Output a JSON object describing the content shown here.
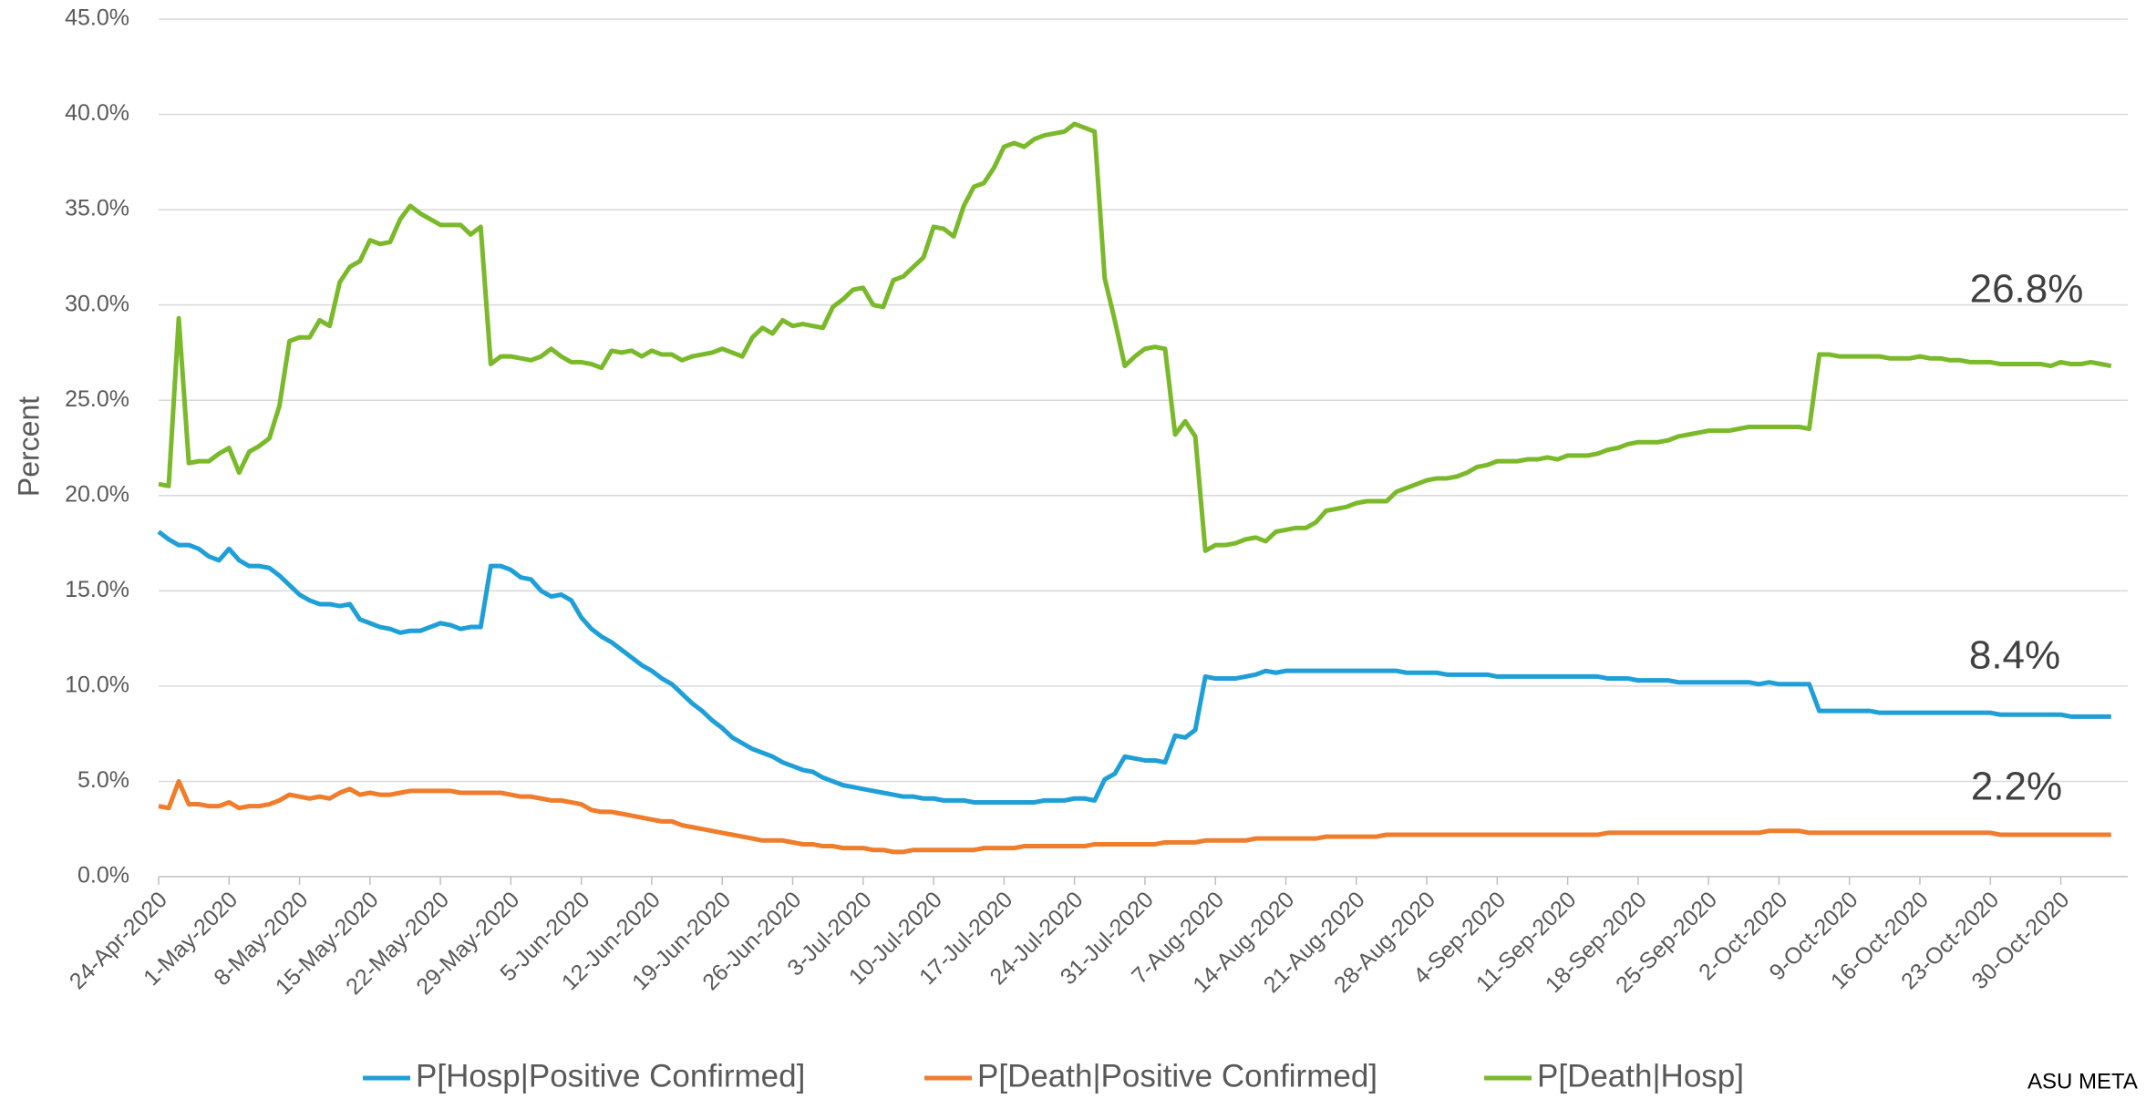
{
  "chart_data": {
    "type": "line",
    "y_label": "Percent",
    "ylim": [
      0,
      45
    ],
    "yticks": [
      {
        "value": 0,
        "label": "0.0%"
      },
      {
        "value": 5,
        "label": "5.0%"
      },
      {
        "value": 10,
        "label": "10.0%"
      },
      {
        "value": 15,
        "label": "15.0%"
      },
      {
        "value": 20,
        "label": "20.0%"
      },
      {
        "value": 25,
        "label": "25.0%"
      },
      {
        "value": 30,
        "label": "30.0%"
      },
      {
        "value": 35,
        "label": "35.0%"
      },
      {
        "value": 40,
        "label": "40.0%"
      },
      {
        "value": 45,
        "label": "45.0%"
      }
    ],
    "grid": true,
    "legend": "bottom",
    "categories": [
      "24-Apr-2020",
      null,
      null,
      null,
      null,
      null,
      null,
      "1-May-2020",
      null,
      null,
      null,
      null,
      null,
      null,
      "8-May-2020",
      null,
      null,
      null,
      null,
      null,
      null,
      "15-May-2020",
      null,
      null,
      null,
      null,
      null,
      null,
      "22-May-2020",
      null,
      null,
      null,
      null,
      null,
      null,
      "29-May-2020",
      null,
      null,
      null,
      null,
      null,
      null,
      "5-Jun-2020",
      null,
      null,
      null,
      null,
      null,
      null,
      "12-Jun-2020",
      null,
      null,
      null,
      null,
      null,
      null,
      "19-Jun-2020",
      null,
      null,
      null,
      null,
      null,
      null,
      "26-Jun-2020",
      null,
      null,
      null,
      null,
      null,
      null,
      "3-Jul-2020",
      null,
      null,
      null,
      null,
      null,
      null,
      "10-Jul-2020",
      null,
      null,
      null,
      null,
      null,
      null,
      "17-Jul-2020",
      null,
      null,
      null,
      null,
      null,
      null,
      "24-Jul-2020",
      null,
      null,
      null,
      null,
      null,
      null,
      "31-Jul-2020",
      null,
      null,
      null,
      null,
      null,
      null,
      "7-Aug-2020",
      null,
      null,
      null,
      null,
      null,
      null,
      "14-Aug-2020",
      null,
      null,
      null,
      null,
      null,
      null,
      "21-Aug-2020",
      null,
      null,
      null,
      null,
      null,
      null,
      "28-Aug-2020",
      null,
      null,
      null,
      null,
      null,
      null,
      "4-Sep-2020",
      null,
      null,
      null,
      null,
      null,
      null,
      "11-Sep-2020",
      null,
      null,
      null,
      null,
      null,
      null,
      "18-Sep-2020",
      null,
      null,
      null,
      null,
      null,
      null,
      "25-Sep-2020",
      null,
      null,
      null,
      null,
      null,
      null,
      "2-Oct-2020",
      null,
      null,
      null,
      null,
      null,
      null,
      "9-Oct-2020",
      null,
      null,
      null,
      null,
      null,
      null,
      "16-Oct-2020",
      null,
      null,
      null,
      null,
      null,
      null,
      "23-Oct-2020",
      null,
      null,
      null,
      null,
      null,
      null,
      "30-Oct-2020",
      null,
      null,
      null,
      null,
      null
    ],
    "series": [
      {
        "name": "P[Hosp|Positive Confirmed]",
        "color": "#1f9fd8",
        "values": [
          18.1,
          17.7,
          17.4,
          17.4,
          17.2,
          16.8,
          16.6,
          17.2,
          16.6,
          16.3,
          16.3,
          16.2,
          15.8,
          15.3,
          14.8,
          14.5,
          14.3,
          14.3,
          14.2,
          14.3,
          13.5,
          13.3,
          13.1,
          13.0,
          12.8,
          12.9,
          12.9,
          13.1,
          13.3,
          13.2,
          13.0,
          13.1,
          13.1,
          16.3,
          16.3,
          16.1,
          15.7,
          15.6,
          15.0,
          14.7,
          14.8,
          14.5,
          13.6,
          13.0,
          12.6,
          12.3,
          11.9,
          11.5,
          11.1,
          10.8,
          10.4,
          10.1,
          9.6,
          9.1,
          8.7,
          8.2,
          7.8,
          7.3,
          7.0,
          6.7,
          6.5,
          6.3,
          6.0,
          5.8,
          5.6,
          5.5,
          5.2,
          5.0,
          4.8,
          4.7,
          4.6,
          4.5,
          4.4,
          4.3,
          4.2,
          4.2,
          4.1,
          4.1,
          4.0,
          4.0,
          4.0,
          3.9,
          3.9,
          3.9,
          3.9,
          3.9,
          3.9,
          3.9,
          4.0,
          4.0,
          4.0,
          4.1,
          4.1,
          4.0,
          5.1,
          5.4,
          6.3,
          6.2,
          6.1,
          6.1,
          6.0,
          7.4,
          7.3,
          7.7,
          10.5,
          10.4,
          10.4,
          10.4,
          10.5,
          10.6,
          10.8,
          10.7,
          10.8,
          10.8,
          10.8,
          10.8,
          10.8,
          10.8,
          10.8,
          10.8,
          10.8,
          10.8,
          10.8,
          10.8,
          10.7,
          10.7,
          10.7,
          10.7,
          10.6,
          10.6,
          10.6,
          10.6,
          10.6,
          10.5,
          10.5,
          10.5,
          10.5,
          10.5,
          10.5,
          10.5,
          10.5,
          10.5,
          10.5,
          10.5,
          10.4,
          10.4,
          10.4,
          10.3,
          10.3,
          10.3,
          10.3,
          10.2,
          10.2,
          10.2,
          10.2,
          10.2,
          10.2,
          10.2,
          10.2,
          10.1,
          10.2,
          10.1,
          10.1,
          10.1,
          10.1,
          8.7,
          8.7,
          8.7,
          8.7,
          8.7,
          8.7,
          8.6,
          8.6,
          8.6,
          8.6,
          8.6,
          8.6,
          8.6,
          8.6,
          8.6,
          8.6,
          8.6,
          8.6,
          8.5,
          8.5,
          8.5,
          8.5,
          8.5,
          8.5,
          8.5,
          8.4,
          8.4,
          8.4,
          8.4,
          8.4
        ]
      },
      {
        "name": "P[Death|Positive Confirmed]",
        "color": "#ef7d2c",
        "values": [
          3.7,
          3.6,
          5.0,
          3.8,
          3.8,
          3.7,
          3.7,
          3.9,
          3.6,
          3.7,
          3.7,
          3.8,
          4.0,
          4.3,
          4.2,
          4.1,
          4.2,
          4.1,
          4.4,
          4.6,
          4.3,
          4.4,
          4.3,
          4.3,
          4.4,
          4.5,
          4.5,
          4.5,
          4.5,
          4.5,
          4.4,
          4.4,
          4.4,
          4.4,
          4.4,
          4.3,
          4.2,
          4.2,
          4.1,
          4.0,
          4.0,
          3.9,
          3.8,
          3.5,
          3.4,
          3.4,
          3.3,
          3.2,
          3.1,
          3.0,
          2.9,
          2.9,
          2.7,
          2.6,
          2.5,
          2.4,
          2.3,
          2.2,
          2.1,
          2.0,
          1.9,
          1.9,
          1.9,
          1.8,
          1.7,
          1.7,
          1.6,
          1.6,
          1.5,
          1.5,
          1.5,
          1.4,
          1.4,
          1.3,
          1.3,
          1.4,
          1.4,
          1.4,
          1.4,
          1.4,
          1.4,
          1.4,
          1.5,
          1.5,
          1.5,
          1.5,
          1.6,
          1.6,
          1.6,
          1.6,
          1.6,
          1.6,
          1.6,
          1.7,
          1.7,
          1.7,
          1.7,
          1.7,
          1.7,
          1.7,
          1.8,
          1.8,
          1.8,
          1.8,
          1.9,
          1.9,
          1.9,
          1.9,
          1.9,
          2.0,
          2.0,
          2.0,
          2.0,
          2.0,
          2.0,
          2.0,
          2.1,
          2.1,
          2.1,
          2.1,
          2.1,
          2.1,
          2.2,
          2.2,
          2.2,
          2.2,
          2.2,
          2.2,
          2.2,
          2.2,
          2.2,
          2.2,
          2.2,
          2.2,
          2.2,
          2.2,
          2.2,
          2.2,
          2.2,
          2.2,
          2.2,
          2.2,
          2.2,
          2.2,
          2.3,
          2.3,
          2.3,
          2.3,
          2.3,
          2.3,
          2.3,
          2.3,
          2.3,
          2.3,
          2.3,
          2.3,
          2.3,
          2.3,
          2.3,
          2.3,
          2.4,
          2.4,
          2.4,
          2.4,
          2.3,
          2.3,
          2.3,
          2.3,
          2.3,
          2.3,
          2.3,
          2.3,
          2.3,
          2.3,
          2.3,
          2.3,
          2.3,
          2.3,
          2.3,
          2.3,
          2.3,
          2.3,
          2.3,
          2.2,
          2.2,
          2.2,
          2.2,
          2.2,
          2.2,
          2.2,
          2.2,
          2.2,
          2.2,
          2.2,
          2.2
        ]
      },
      {
        "name": "P[Death|Hosp]",
        "color": "#7ab929",
        "values": [
          20.6,
          20.5,
          29.3,
          21.7,
          21.8,
          21.8,
          22.2,
          22.5,
          21.2,
          22.3,
          22.6,
          23.0,
          24.7,
          28.1,
          28.3,
          28.3,
          29.2,
          28.9,
          31.2,
          32.0,
          32.3,
          33.4,
          33.2,
          33.3,
          34.5,
          35.2,
          34.8,
          34.5,
          34.2,
          34.2,
          34.2,
          33.7,
          34.1,
          26.9,
          27.3,
          27.3,
          27.2,
          27.1,
          27.3,
          27.7,
          27.3,
          27.0,
          27.0,
          26.9,
          26.7,
          27.6,
          27.5,
          27.6,
          27.3,
          27.6,
          27.4,
          27.4,
          27.1,
          27.3,
          27.4,
          27.5,
          27.7,
          27.5,
          27.3,
          28.3,
          28.8,
          28.5,
          29.2,
          28.9,
          29.0,
          28.9,
          28.8,
          29.9,
          30.3,
          30.8,
          30.9,
          30.0,
          29.9,
          31.3,
          31.5,
          32.0,
          32.5,
          34.1,
          34.0,
          33.6,
          35.2,
          36.2,
          36.4,
          37.2,
          38.3,
          38.5,
          38.3,
          38.7,
          38.9,
          39.0,
          39.1,
          39.5,
          39.3,
          39.1,
          31.4,
          29.2,
          26.8,
          27.3,
          27.7,
          27.8,
          27.7,
          23.2,
          23.9,
          23.1,
          17.1,
          17.4,
          17.4,
          17.5,
          17.7,
          17.8,
          17.6,
          18.1,
          18.2,
          18.3,
          18.3,
          18.6,
          19.2,
          19.3,
          19.4,
          19.6,
          19.7,
          19.7,
          19.7,
          20.2,
          20.4,
          20.6,
          20.8,
          20.9,
          20.9,
          21.0,
          21.2,
          21.5,
          21.6,
          21.8,
          21.8,
          21.8,
          21.9,
          21.9,
          22.0,
          21.9,
          22.1,
          22.1,
          22.1,
          22.2,
          22.4,
          22.5,
          22.7,
          22.8,
          22.8,
          22.8,
          22.9,
          23.1,
          23.2,
          23.3,
          23.4,
          23.4,
          23.4,
          23.5,
          23.6,
          23.6,
          23.6,
          23.6,
          23.6,
          23.6,
          23.5,
          27.4,
          27.4,
          27.3,
          27.3,
          27.3,
          27.3,
          27.3,
          27.2,
          27.2,
          27.2,
          27.3,
          27.2,
          27.2,
          27.1,
          27.1,
          27.0,
          27.0,
          27.0,
          26.9,
          26.9,
          26.9,
          26.9,
          26.9,
          26.8,
          27.0,
          26.9,
          26.9,
          27.0,
          26.9,
          26.8
        ]
      }
    ],
    "annotations": [
      "26.8%",
      "8.4%",
      "2.2%"
    ],
    "source": "ASU META"
  }
}
